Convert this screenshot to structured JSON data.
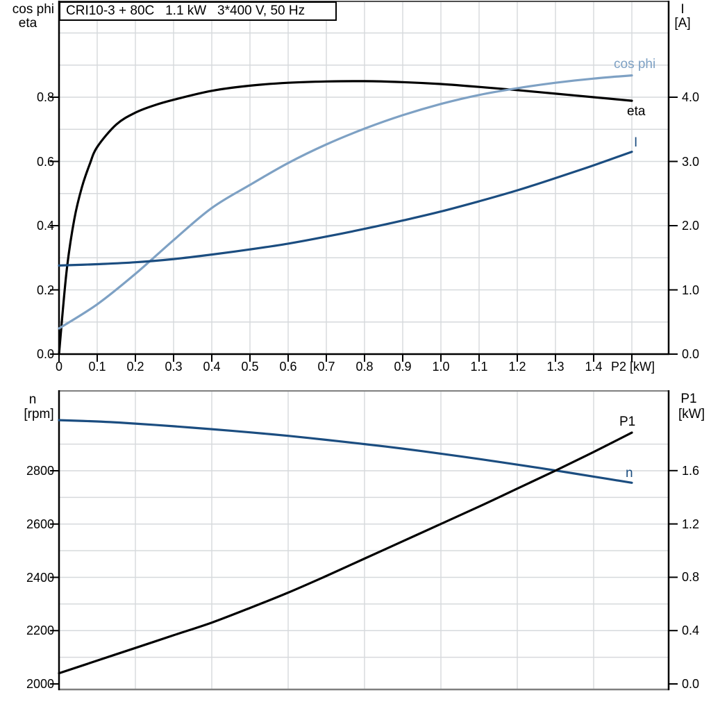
{
  "title": "CRI10-3 + 80C   1.1 kW   3*400 V, 50 Hz",
  "axis_headers": {
    "top_left_line1": "cos phi",
    "top_left_line2": "eta",
    "top_right_line1": "I",
    "top_right_line2": "[A]",
    "bottom_left_line1": "n",
    "bottom_left_line2": "[rpm]",
    "bottom_right_line1": "P1",
    "bottom_right_line2": "[kW]"
  },
  "curve_labels": {
    "cos_phi": "cos phi",
    "eta": "eta",
    "current": "I",
    "p1": "P1",
    "n": "n"
  },
  "x_axis_label": "P2 [kW]",
  "colors": {
    "black_curve": "#000000",
    "light_blue_curve": "#7ea1c4",
    "dark_blue_curve": "#1b4d80",
    "grid": "#d6d9dc",
    "frame_gray": "#7f7f7f",
    "axis_black": "#000000",
    "text": "#000000"
  },
  "chart_data": [
    {
      "type": "line",
      "title": "CRI10-3 + 80C   1.1 kW   3*400 V, 50 Hz",
      "xlabel": "P2 [kW]",
      "x_axis": {
        "range": [
          0,
          1.596
        ],
        "tick_values": [
          0,
          0.1,
          0.2,
          0.3,
          0.4,
          0.5,
          0.6,
          0.7,
          0.8,
          0.9,
          1.0,
          1.1,
          1.2,
          1.3,
          1.4,
          1.5
        ],
        "tick_labels": [
          "0",
          "0.1",
          "0.2",
          "0.3",
          "0.4",
          "0.5",
          "0.6",
          "0.7",
          "0.8",
          "0.9",
          "1.0",
          "1.1",
          "1.2",
          "1.3",
          "1.4",
          ""
        ],
        "grid_step": 0.1
      },
      "y_left": {
        "label": "cos phi / eta",
        "range": [
          0,
          1.1
        ],
        "tick_values": [
          0,
          0.2,
          0.4,
          0.6,
          0.8
        ],
        "tick_labels": [
          "0.0",
          "0.2",
          "0.4",
          "0.6",
          "0.8"
        ],
        "grid_values": [
          0.1,
          0.2,
          0.3,
          0.4,
          0.5,
          0.6,
          0.7,
          0.8,
          0.9,
          1.0
        ]
      },
      "y_right": {
        "label": "I [A]",
        "range": [
          0,
          5.5
        ],
        "tick_values": [
          0,
          1,
          2,
          3,
          4
        ],
        "tick_labels": [
          "0.0",
          "1.0",
          "2.0",
          "3.0",
          "4.0"
        ]
      },
      "series": [
        {
          "name": "eta",
          "axis": "left",
          "color": "#000000",
          "x": [
            0,
            0.02,
            0.04,
            0.06,
            0.08,
            0.1,
            0.15,
            0.2,
            0.25,
            0.3,
            0.4,
            0.5,
            0.6,
            0.7,
            0.8,
            0.9,
            1.0,
            1.1,
            1.2,
            1.3,
            1.4,
            1.5
          ],
          "values": [
            0,
            0.26,
            0.42,
            0.52,
            0.59,
            0.645,
            0.715,
            0.752,
            0.775,
            0.792,
            0.82,
            0.836,
            0.845,
            0.849,
            0.85,
            0.847,
            0.841,
            0.832,
            0.822,
            0.811,
            0.8,
            0.789
          ]
        },
        {
          "name": "cos phi",
          "axis": "left",
          "color": "#7ea1c4",
          "x": [
            0,
            0.1,
            0.2,
            0.3,
            0.4,
            0.5,
            0.6,
            0.7,
            0.8,
            0.9,
            1.0,
            1.1,
            1.2,
            1.3,
            1.4,
            1.5
          ],
          "values": [
            0.08,
            0.155,
            0.25,
            0.355,
            0.455,
            0.527,
            0.595,
            0.653,
            0.702,
            0.744,
            0.779,
            0.807,
            0.828,
            0.845,
            0.858,
            0.868
          ]
        },
        {
          "name": "I",
          "axis": "right",
          "color": "#1b4d80",
          "x": [
            0,
            0.1,
            0.2,
            0.3,
            0.4,
            0.5,
            0.6,
            0.7,
            0.8,
            0.9,
            1.0,
            1.1,
            1.2,
            1.3,
            1.4,
            1.5
          ],
          "values": [
            1.38,
            1.4,
            1.43,
            1.48,
            1.55,
            1.63,
            1.72,
            1.83,
            1.95,
            2.08,
            2.22,
            2.38,
            2.55,
            2.74,
            2.94,
            3.15
          ]
        }
      ]
    },
    {
      "type": "line",
      "title": "",
      "xlabel": "P2 [kW] (shared, unlabeled)",
      "x_axis": {
        "range": [
          0,
          1.596
        ],
        "grid_values": [
          0.2,
          0.4,
          0.6,
          0.8,
          1.0,
          1.2,
          1.4
        ]
      },
      "y_left": {
        "label": "n [rpm]",
        "range": [
          2000,
          3123
        ],
        "tick_values": [
          2000,
          2200,
          2400,
          2600,
          2800
        ],
        "tick_labels": [
          "2000",
          "2200",
          "2400",
          "2600",
          "2800"
        ],
        "grid_values": [
          2100,
          2200,
          2300,
          2400,
          2500,
          2600,
          2700,
          2800,
          2900
        ]
      },
      "y_right": {
        "label": "P1 [kW]",
        "range": [
          0,
          2.246
        ],
        "tick_values": [
          0,
          0.4,
          0.8,
          1.2,
          1.6
        ],
        "tick_labels": [
          "0.0",
          "0.4",
          "0.8",
          "1.2",
          "1.6"
        ]
      },
      "series": [
        {
          "name": "n",
          "axis": "left",
          "color": "#1b4d80",
          "x": [
            0,
            0.1,
            0.2,
            0.3,
            0.4,
            0.5,
            0.6,
            0.7,
            0.8,
            0.9,
            1.0,
            1.1,
            1.2,
            1.3,
            1.4,
            1.5
          ],
          "values": [
            2990,
            2985,
            2977,
            2967,
            2956,
            2944,
            2931,
            2916,
            2900,
            2883,
            2864,
            2844,
            2823,
            2801,
            2778,
            2755
          ]
        },
        {
          "name": "P1",
          "axis": "right",
          "color": "#000000",
          "x": [
            0,
            0.1,
            0.2,
            0.3,
            0.4,
            0.5,
            0.6,
            0.7,
            0.8,
            0.9,
            1.0,
            1.1,
            1.2,
            1.3,
            1.4,
            1.5
          ],
          "values": [
            0.08,
            0.175,
            0.27,
            0.365,
            0.46,
            0.57,
            0.685,
            0.81,
            0.94,
            1.07,
            1.2,
            1.33,
            1.465,
            1.6,
            1.74,
            1.885
          ]
        }
      ]
    }
  ]
}
